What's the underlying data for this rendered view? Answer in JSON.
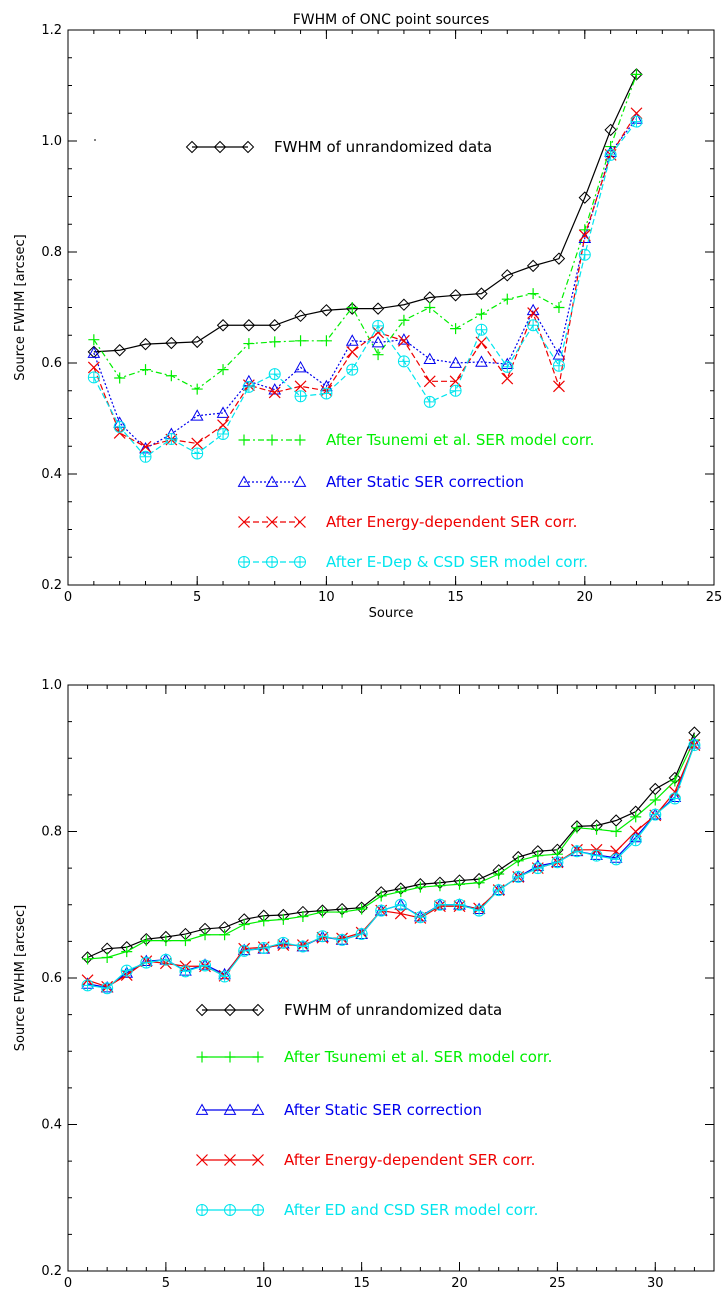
{
  "chart_data": [
    {
      "type": "line",
      "title": "FWHM of ONC point sources",
      "xlabel": "Source",
      "ylabel": "Source FWHM [arcsec]",
      "xlim": [
        0,
        25
      ],
      "ylim": [
        0.2,
        1.2
      ],
      "xticks": [
        "0",
        "5",
        "10",
        "15",
        "20",
        "25"
      ],
      "yticks": [
        "0.2",
        "0.4",
        "0.6",
        "0.8",
        "1.0",
        "1.2"
      ],
      "legend_position": "inside",
      "series": [
        {
          "name": "FWHM of unrandomized data",
          "color": "#000000",
          "marker": "diamond",
          "dash": "solid",
          "x": [
            1,
            2,
            3,
            4,
            5,
            6,
            7,
            8,
            9,
            10,
            11,
            12,
            13,
            14,
            15,
            16,
            17,
            18,
            19,
            20,
            21,
            22
          ],
          "y": [
            0.62,
            0.623,
            0.634,
            0.636,
            0.638,
            0.668,
            0.668,
            0.668,
            0.685,
            0.695,
            0.698,
            0.698,
            0.705,
            0.718,
            0.722,
            0.725,
            0.758,
            0.775,
            0.788,
            0.898,
            1.02,
            1.12
          ]
        },
        {
          "name": "After Tsunemi et al. SER model corr.",
          "color": "#00ee00",
          "marker": "plus",
          "dash": "dashdot",
          "x": [
            1,
            2,
            3,
            4,
            5,
            6,
            7,
            8,
            9,
            10,
            11,
            12,
            13,
            14,
            15,
            16,
            17,
            18,
            19,
            20,
            21,
            22
          ],
          "y": [
            0.642,
            0.573,
            0.588,
            0.577,
            0.553,
            0.588,
            0.635,
            0.638,
            0.64,
            0.64,
            0.7,
            0.615,
            0.677,
            0.7,
            0.662,
            0.688,
            0.715,
            0.725,
            0.7,
            0.84,
            0.99,
            1.12
          ]
        },
        {
          "name": "After Static SER correction",
          "color": "#0000ee",
          "marker": "triangle",
          "dash": "dotted",
          "x": [
            1,
            2,
            3,
            4,
            5,
            6,
            7,
            8,
            9,
            10,
            11,
            12,
            13,
            14,
            15,
            16,
            17,
            18,
            19,
            20,
            21,
            22
          ],
          "y": [
            0.618,
            0.492,
            0.446,
            0.472,
            0.505,
            0.51,
            0.567,
            0.552,
            0.592,
            0.558,
            0.64,
            0.637,
            0.642,
            0.607,
            0.6,
            0.602,
            0.598,
            0.695,
            0.615,
            0.825,
            0.98,
            1.04
          ]
        },
        {
          "name": "After Energy-dependent SER corr.",
          "color": "#ee0000",
          "marker": "x",
          "dash": "dashed",
          "x": [
            1,
            2,
            3,
            4,
            5,
            6,
            7,
            8,
            9,
            10,
            11,
            12,
            13,
            14,
            15,
            16,
            17,
            18,
            19,
            20,
            21,
            22
          ],
          "y": [
            0.592,
            0.474,
            0.449,
            0.462,
            0.455,
            0.488,
            0.56,
            0.547,
            0.558,
            0.55,
            0.62,
            0.655,
            0.64,
            0.567,
            0.567,
            0.637,
            0.572,
            0.69,
            0.558,
            0.83,
            0.975,
            1.05
          ]
        },
        {
          "name": "After E-Dep & CSD SER model corr.",
          "color": "#00e5ee",
          "marker": "circleplus",
          "dash": "dashed",
          "x": [
            1,
            2,
            3,
            4,
            5,
            6,
            7,
            8,
            9,
            10,
            11,
            12,
            13,
            14,
            15,
            16,
            17,
            18,
            19,
            20,
            21,
            22
          ],
          "y": [
            0.574,
            0.485,
            0.431,
            0.463,
            0.437,
            0.472,
            0.557,
            0.58,
            0.54,
            0.545,
            0.588,
            0.667,
            0.603,
            0.53,
            0.55,
            0.66,
            0.593,
            0.668,
            0.595,
            0.795,
            0.975,
            1.035
          ]
        }
      ]
    },
    {
      "type": "line",
      "title": "",
      "xlabel": "Source",
      "ylabel": "Source FWHM [arcsec]",
      "xlim": [
        0,
        33
      ],
      "ylim": [
        0.2,
        1.0
      ],
      "xticks": [
        "0",
        "5",
        "10",
        "15",
        "20",
        "25",
        "30"
      ],
      "yticks": [
        "0.2",
        "0.4",
        "0.6",
        "0.8",
        "1.0"
      ],
      "legend_position": "inside",
      "series": [
        {
          "name": "FWHM of unrandomized data",
          "color": "#000000",
          "marker": "diamond",
          "dash": "solid",
          "x": [
            1,
            2,
            3,
            4,
            5,
            6,
            7,
            8,
            9,
            10,
            11,
            12,
            13,
            14,
            15,
            16,
            17,
            18,
            19,
            20,
            21,
            22,
            23,
            24,
            25,
            26,
            27,
            28,
            29,
            30,
            31,
            32
          ],
          "y": [
            0.628,
            0.64,
            0.642,
            0.653,
            0.656,
            0.66,
            0.667,
            0.669,
            0.68,
            0.685,
            0.686,
            0.69,
            0.692,
            0.694,
            0.696,
            0.717,
            0.722,
            0.728,
            0.73,
            0.733,
            0.735,
            0.747,
            0.765,
            0.773,
            0.775,
            0.807,
            0.808,
            0.815,
            0.827,
            0.858,
            0.873,
            0.935
          ]
        },
        {
          "name": "After Tsunemi et al. SER model corr.",
          "color": "#00ee00",
          "marker": "plus",
          "dash": "solid",
          "x": [
            1,
            2,
            3,
            4,
            5,
            6,
            7,
            8,
            9,
            10,
            11,
            12,
            13,
            14,
            15,
            16,
            17,
            18,
            19,
            20,
            21,
            22,
            23,
            24,
            25,
            26,
            27,
            28,
            29,
            30,
            31,
            32
          ],
          "y": [
            0.626,
            0.628,
            0.636,
            0.651,
            0.651,
            0.651,
            0.659,
            0.659,
            0.673,
            0.678,
            0.68,
            0.684,
            0.69,
            0.69,
            0.694,
            0.712,
            0.718,
            0.724,
            0.726,
            0.728,
            0.73,
            0.742,
            0.76,
            0.767,
            0.769,
            0.805,
            0.803,
            0.8,
            0.82,
            0.843,
            0.869,
            0.925
          ]
        },
        {
          "name": "After Static SER correction",
          "color": "#0000ee",
          "marker": "triangle",
          "dash": "solid",
          "x": [
            1,
            2,
            3,
            4,
            5,
            6,
            7,
            8,
            9,
            10,
            11,
            12,
            13,
            14,
            15,
            16,
            17,
            18,
            19,
            20,
            21,
            22,
            23,
            24,
            25,
            26,
            27,
            28,
            29,
            30,
            31,
            32
          ],
          "y": [
            0.592,
            0.587,
            0.607,
            0.623,
            0.625,
            0.61,
            0.618,
            0.605,
            0.638,
            0.64,
            0.647,
            0.643,
            0.656,
            0.652,
            0.66,
            0.692,
            0.7,
            0.684,
            0.7,
            0.7,
            0.694,
            0.72,
            0.738,
            0.753,
            0.758,
            0.773,
            0.768,
            0.764,
            0.792,
            0.823,
            0.847,
            0.92
          ]
        },
        {
          "name": "After Energy-dependent SER corr.",
          "color": "#ee0000",
          "marker": "x",
          "dash": "solid",
          "x": [
            1,
            2,
            3,
            4,
            5,
            6,
            7,
            8,
            9,
            10,
            11,
            12,
            13,
            14,
            15,
            16,
            17,
            18,
            19,
            20,
            21,
            22,
            23,
            24,
            25,
            26,
            27,
            28,
            29,
            30,
            31,
            32
          ],
          "y": [
            0.597,
            0.588,
            0.604,
            0.623,
            0.62,
            0.616,
            0.616,
            0.603,
            0.64,
            0.642,
            0.645,
            0.645,
            0.655,
            0.654,
            0.662,
            0.692,
            0.688,
            0.682,
            0.698,
            0.698,
            0.695,
            0.72,
            0.738,
            0.75,
            0.758,
            0.775,
            0.775,
            0.773,
            0.8,
            0.822,
            0.854,
            0.918
          ]
        },
        {
          "name": "After ED and CSD SER model corr.",
          "color": "#00e5ee",
          "marker": "circleplus",
          "dash": "solid",
          "x": [
            1,
            2,
            3,
            4,
            5,
            6,
            7,
            8,
            9,
            10,
            11,
            12,
            13,
            14,
            15,
            16,
            17,
            18,
            19,
            20,
            21,
            22,
            23,
            24,
            25,
            26,
            27,
            28,
            29,
            30,
            31,
            32
          ],
          "y": [
            0.59,
            0.586,
            0.61,
            0.621,
            0.625,
            0.609,
            0.617,
            0.602,
            0.637,
            0.641,
            0.648,
            0.643,
            0.657,
            0.652,
            0.66,
            0.692,
            0.7,
            0.683,
            0.7,
            0.7,
            0.692,
            0.72,
            0.738,
            0.75,
            0.758,
            0.773,
            0.767,
            0.762,
            0.788,
            0.823,
            0.845,
            0.918
          ]
        }
      ]
    }
  ]
}
